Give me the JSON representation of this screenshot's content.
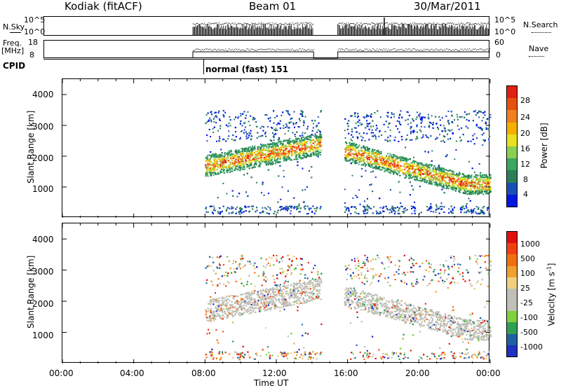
{
  "header": {
    "station": "Kodiak (fitACF)",
    "beam": "Beam 01",
    "date": "30/Mar/2011"
  },
  "top_panels": {
    "nsky_label": "N.Sky",
    "nsky_ticks": [
      "10^5",
      "10^0"
    ],
    "nsearch_label": "N.Search",
    "nsearch_ticks": [
      "10^5",
      "10^0"
    ],
    "freq_label": "Freq.",
    "freq_unit": "[MHz]",
    "freq_ticks": [
      "18",
      "8"
    ],
    "nave_label": "Nave",
    "nave_ticks": [
      "60",
      "0"
    ],
    "cpid_label": "CPID",
    "cpid_value": "normal (fast) 151"
  },
  "colors": {
    "power": [
      "#0018e0",
      "#1b4fb8",
      "#2a7f5a",
      "#3aa860",
      "#8ad050",
      "#e8e020",
      "#f4b000",
      "#f08020",
      "#e85010",
      "#e02010"
    ],
    "velocity": [
      "#e01010",
      "#f04010",
      "#f07010",
      "#f0a030",
      "#f0d080",
      "#c0c0b8",
      "#c0c0b8",
      "#80d040",
      "#30a050",
      "#2060a0",
      "#2030c0"
    ]
  },
  "chart_data": [
    {
      "type": "heatmap",
      "name": "power-panel",
      "xlabel": "",
      "ylabel": "Slant Range [km]",
      "x_ticks": [
        "00:00",
        "04:00",
        "08:00",
        "12:00",
        "16:00",
        "20:00",
        "00:00"
      ],
      "y_ticks": [
        4000,
        3000,
        2000,
        1000
      ],
      "ylim": [
        0,
        4500
      ],
      "xlim": [
        0,
        24
      ],
      "colorbar_label": "Power [dB]",
      "colorbar_ticks": [
        "28",
        "24",
        "20",
        "16",
        "12",
        "8",
        "4"
      ],
      "data_gaps_hours": [
        [
          0,
          8
        ],
        [
          14.5,
          15.8
        ]
      ]
    },
    {
      "type": "heatmap",
      "name": "velocity-panel",
      "xlabel": "Time UT",
      "ylabel": "Slant Range [km]",
      "x_ticks": [
        "00:00",
        "04:00",
        "08:00",
        "12:00",
        "16:00",
        "20:00",
        "00:00"
      ],
      "y_ticks": [
        4000,
        3000,
        2000,
        1000
      ],
      "ylim": [
        0,
        4500
      ],
      "xlim": [
        0,
        24
      ],
      "colorbar_label": "Velocity [m s",
      "colorbar_label_sup": "-1",
      "colorbar_label_end": "]",
      "colorbar_ticks": [
        "1000",
        "500",
        "100",
        "25",
        "-25",
        "-100",
        "-500",
        "-1000"
      ],
      "data_gaps_hours": [
        [
          0,
          8
        ],
        [
          14.5,
          15.8
        ]
      ]
    }
  ]
}
